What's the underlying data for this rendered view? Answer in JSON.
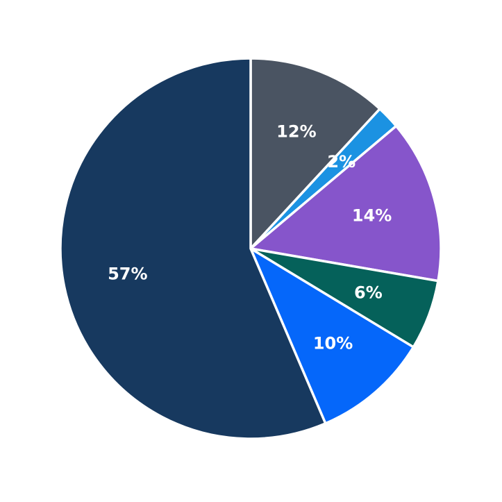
{
  "page": {
    "background_color": "#ffffff"
  },
  "chart_data": {
    "type": "pie",
    "title": "",
    "legend": "none",
    "start_angle_deg": 90,
    "direction": "clockwise",
    "edge_color": "#ffffff",
    "label_color": "#ffffff",
    "label_distance": 0.66,
    "slices": [
      {
        "label": "12%",
        "value": 12,
        "color": "#4a5462"
      },
      {
        "label": "2%",
        "value": 2,
        "color": "#1b92e2"
      },
      {
        "label": "14%",
        "value": 14,
        "color": "#8655cb"
      },
      {
        "label": "6%",
        "value": 6,
        "color": "#05615a"
      },
      {
        "label": "10%",
        "value": 10,
        "color": "#0567fa"
      },
      {
        "label": "57%",
        "value": 57,
        "color": "#17395f"
      }
    ]
  }
}
